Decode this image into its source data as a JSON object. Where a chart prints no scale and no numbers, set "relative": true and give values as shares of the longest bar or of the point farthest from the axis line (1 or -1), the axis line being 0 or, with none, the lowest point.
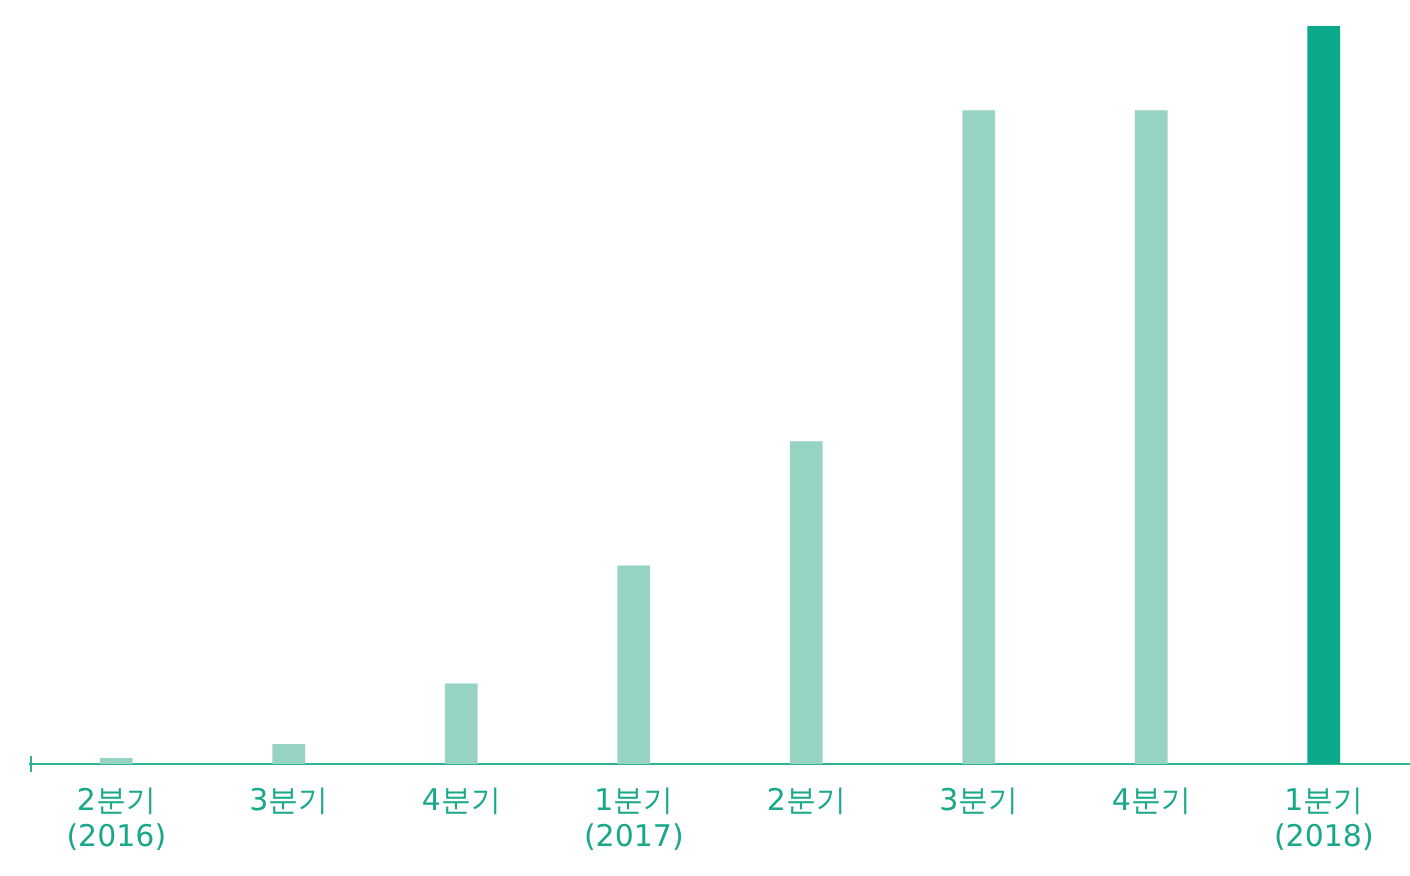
{
  "chart_data": {
    "type": "bar",
    "relative": true,
    "categories": [
      "2분기\n(2016)",
      "3분기",
      "4분기",
      "1분기\n(2017)",
      "2분기",
      "3분기",
      "4분기",
      "1분기\n(2018)"
    ],
    "values": [
      0.008,
      0.027,
      0.109,
      0.269,
      0.4375,
      0.886,
      0.886,
      1
    ],
    "colors": [
      "#97d3c3",
      "#97d3c3",
      "#97d3c3",
      "#97d3c3",
      "#97d3c3",
      "#97d3c3",
      "#97d3c3",
      "#0aa98a"
    ],
    "grid": false,
    "legend": false
  }
}
